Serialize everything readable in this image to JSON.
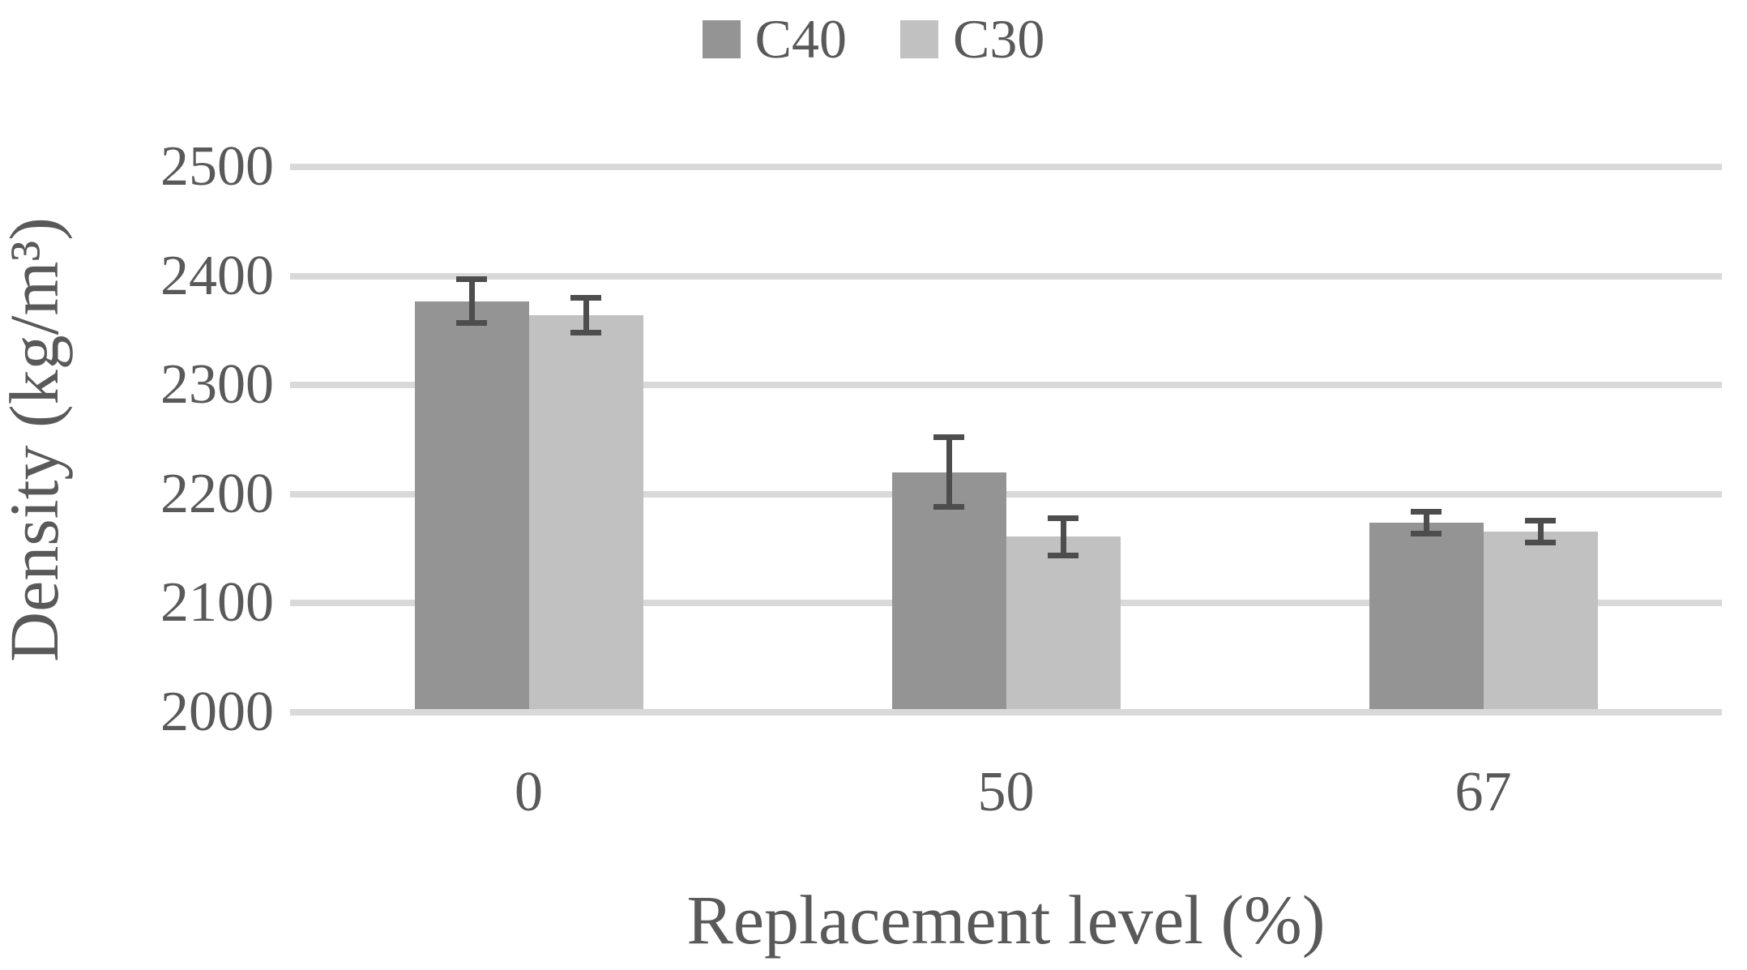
{
  "chart_data": {
    "type": "bar",
    "title": "",
    "categories": [
      "0",
      "50",
      "67"
    ],
    "series": [
      {
        "name": "C40",
        "color": "#949494",
        "values": [
          2377,
          2220,
          2174
        ],
        "error": [
          20,
          32,
          10
        ]
      },
      {
        "name": "C30",
        "color": "#c1c1c1",
        "values": [
          2364,
          2161,
          2166
        ],
        "error": [
          16,
          17,
          10
        ]
      }
    ],
    "xlabel": "Replacement level (%)",
    "ylabel": "Density (kg/m³)",
    "ylim": [
      2000,
      2500
    ],
    "ytick_step": 100,
    "yticks": [
      "2000",
      "2100",
      "2200",
      "2300",
      "2400",
      "2500"
    ],
    "legend_position": "top",
    "grid": "horizontal",
    "colors": {
      "gridline": "#d9d9d9",
      "error_bar": "#4d4d4d",
      "text": "#595959",
      "background": "#ffffff"
    }
  }
}
